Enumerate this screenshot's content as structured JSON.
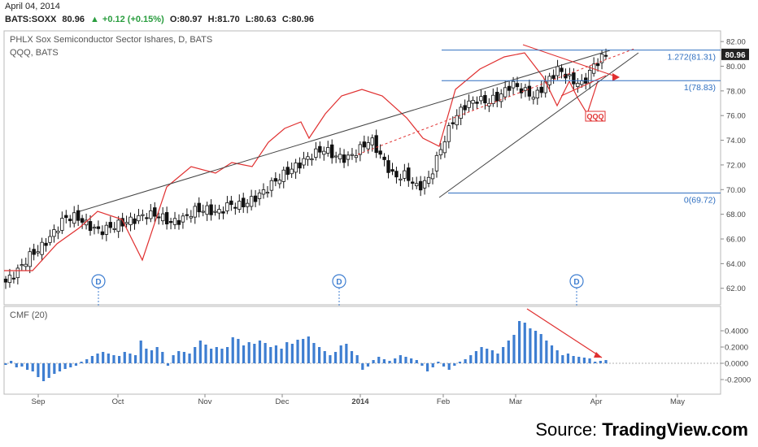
{
  "header": {
    "date": "April 04, 2014",
    "symbol": "BATS:SOXX",
    "last": "80.96",
    "change": "+0.12 (+0.15%)",
    "open": "O:80.97",
    "high": "H:81.70",
    "low": "L:80.63",
    "close": "C:80.96",
    "up_color": "#2a9d3f"
  },
  "main_pane": {
    "title": "PHLX Sox Semiconductor Sector Ishares, D, BATS",
    "overlay_label": "QQQ, BATS",
    "qqq_badge": "QQQ",
    "price_badge": "80.96",
    "dividend_marker": "D"
  },
  "cmf_pane": {
    "label": "CMF (20)"
  },
  "source": {
    "prefix": "Source: ",
    "brand": "TradingView.com"
  },
  "chart_data": [
    {
      "type": "candlestick",
      "yticks": [
        62.0,
        64.0,
        66.0,
        68.0,
        70.0,
        72.0,
        74.0,
        76.0,
        78.0,
        80.0,
        82.0
      ],
      "ylim": [
        60.6,
        82.6
      ],
      "x_ticks": [
        "Sep",
        "Oct",
        "Nov",
        "Dec",
        "2014",
        "Feb",
        "Mar",
        "Apr",
        "May"
      ],
      "series": [
        {
          "name": "SOXX",
          "close_path": [
            62.5,
            63.4,
            64.6,
            65.3,
            66.4,
            67.7,
            67.8,
            67.1,
            66.6,
            67.0,
            67.3,
            67.6,
            68.0,
            67.9,
            67.3,
            67.6,
            68.3,
            68.4,
            68.1,
            68.8,
            68.7,
            69.2,
            69.9,
            70.8,
            71.5,
            72.1,
            72.8,
            73.3,
            72.7,
            72.5,
            73.2,
            74.1,
            72.5,
            71.0,
            71.2,
            70.1,
            70.9,
            73.4,
            75.6,
            76.8,
            77.3,
            77.1,
            77.6,
            78.6,
            78.0,
            77.5,
            78.8,
            79.8,
            78.9,
            78.5,
            80.1,
            80.96
          ]
        },
        {
          "name": "QQQ",
          "color": "#e03030"
        }
      ],
      "fibonacci": [
        {
          "label": "1.272(81.31)",
          "value": 81.31
        },
        {
          "label": "1(78.83)",
          "value": 78.83
        },
        {
          "label": "0(69.72)",
          "value": 69.72
        }
      ],
      "last_price": 80.96
    },
    {
      "type": "bar",
      "title": "CMF (20)",
      "yticks": [
        -0.2,
        0.0,
        0.2,
        0.4
      ],
      "ytick_labels": [
        "-0.2000",
        "0.0000",
        "0.2000",
        "0.4000"
      ],
      "ylim": [
        -0.29,
        0.55
      ],
      "values": [
        -0.02,
        0.03,
        -0.05,
        -0.04,
        -0.08,
        -0.1,
        -0.17,
        -0.22,
        -0.18,
        -0.13,
        -0.1,
        -0.07,
        -0.05,
        -0.03,
        0.02,
        0.05,
        0.09,
        0.12,
        0.14,
        0.12,
        0.1,
        0.09,
        0.14,
        0.12,
        0.1,
        0.28,
        0.18,
        0.16,
        0.2,
        0.14,
        -0.03,
        0.1,
        0.15,
        0.14,
        0.12,
        0.2,
        0.28,
        0.23,
        0.18,
        0.2,
        0.18,
        0.2,
        0.32,
        0.3,
        0.22,
        0.26,
        0.24,
        0.28,
        0.25,
        0.2,
        0.22,
        0.18,
        0.26,
        0.24,
        0.29,
        0.3,
        0.33,
        0.25,
        0.2,
        0.15,
        0.1,
        0.14,
        0.22,
        0.24,
        0.15,
        0.1,
        -0.08,
        -0.04,
        0.04,
        0.08,
        0.05,
        0.03,
        0.06,
        0.1,
        0.08,
        0.06,
        0.04,
        -0.03,
        -0.1,
        -0.05,
        0.02,
        -0.04,
        -0.08,
        -0.03,
        0.02,
        0.05,
        0.1,
        0.15,
        0.2,
        0.18,
        0.16,
        0.12,
        0.2,
        0.28,
        0.35,
        0.52,
        0.5,
        0.43,
        0.4,
        0.36,
        0.28,
        0.22,
        0.16,
        0.1,
        0.12,
        0.09,
        0.08,
        0.07,
        0.06,
        0.02,
        0.03,
        0.04
      ]
    }
  ]
}
